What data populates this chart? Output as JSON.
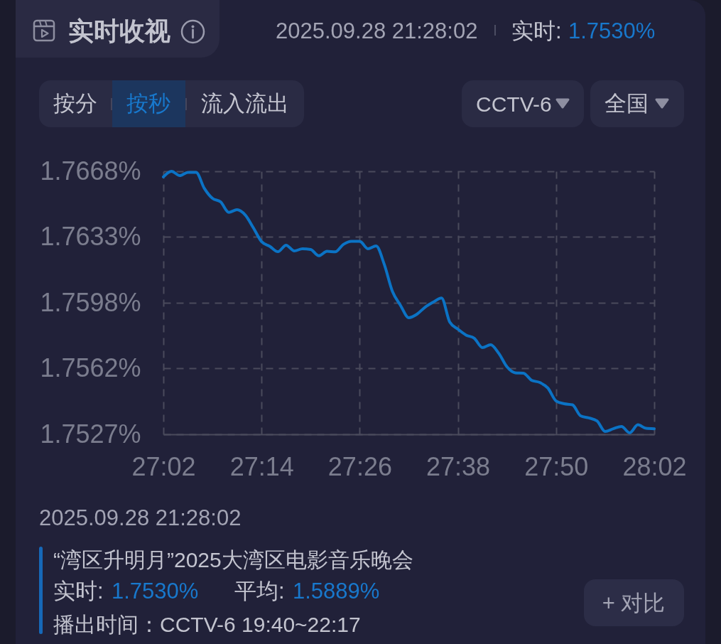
{
  "chart_data": {
    "type": "line",
    "title": "实时收视",
    "x": [
      1622,
      1623,
      1624,
      1625,
      1626,
      1627,
      1628,
      1629,
      1630,
      1631,
      1632,
      1633,
      1634,
      1635,
      1636,
      1637,
      1638,
      1639,
      1640,
      1641,
      1642,
      1643,
      1644,
      1645,
      1646,
      1647,
      1648,
      1649,
      1650,
      1651,
      1652,
      1653,
      1654,
      1655,
      1656,
      1657,
      1658,
      1659,
      1660,
      1661,
      1662,
      1663,
      1664,
      1665,
      1666,
      1667,
      1668,
      1669,
      1670,
      1671,
      1672,
      1673,
      1674,
      1675,
      1676,
      1677,
      1678,
      1679,
      1680,
      1681,
      1682
    ],
    "values": [
      1.7665,
      1.7668,
      1.76657,
      1.76674,
      1.76674,
      1.76589,
      1.76535,
      1.76516,
      1.7646,
      1.76474,
      1.76446,
      1.76377,
      1.76303,
      1.76278,
      1.76249,
      1.76284,
      1.76253,
      1.76265,
      1.76261,
      1.76227,
      1.76251,
      1.76248,
      1.76288,
      1.76305,
      1.76305,
      1.76265,
      1.7628,
      1.76181,
      1.76036,
      1.7596,
      1.75895,
      1.75914,
      1.75952,
      1.75979,
      1.76001,
      1.75872,
      1.75834,
      1.75802,
      1.75785,
      1.75735,
      1.7575,
      1.75704,
      1.75632,
      1.756,
      1.75598,
      1.7556,
      1.75548,
      1.75518,
      1.75449,
      1.75434,
      1.75428,
      1.75369,
      1.75358,
      1.75342,
      1.75285,
      1.753,
      1.75312,
      1.75278,
      1.75321,
      1.75302,
      1.753
    ],
    "color": "#0b73c5",
    "xlim": [
      1622,
      1682
    ],
    "xticks": [
      {
        "value": 1622,
        "label": "27:02"
      },
      {
        "value": 1634,
        "label": "27:14"
      },
      {
        "value": 1646,
        "label": "27:26"
      },
      {
        "value": 1658,
        "label": "27:38"
      },
      {
        "value": 1670,
        "label": "27:50"
      },
      {
        "value": 1682,
        "label": "28:02"
      }
    ],
    "ylim": [
      1.7527,
      1.7668
    ],
    "yticks": [
      {
        "value": 1.7527,
        "label": "1.7527%"
      },
      {
        "value": 1.75623,
        "label": "1.7562%"
      },
      {
        "value": 1.75975,
        "label": "1.7598%"
      },
      {
        "value": 1.76328,
        "label": "1.7633%"
      },
      {
        "value": 1.7668,
        "label": "1.7668%"
      }
    ],
    "grid": true,
    "annotations": [
      "2025.09.28 21:28:02",
      "实时:",
      "1.7530%",
      "按分",
      "按秒",
      "流入流出",
      "CCTV-6",
      "全国",
      "2025.09.28 21:28:02",
      "“湾区升明月”2025大湾区电影音乐晚会",
      "实时:",
      "1.7530%",
      "平均:",
      "1.5889%",
      "播出时间：CCTV-6 19:40~22:17",
      "+ 对比"
    ]
  }
}
